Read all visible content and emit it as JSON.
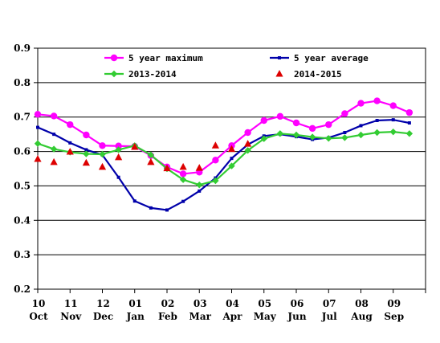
{
  "chart_data": {
    "type": "line",
    "title": "",
    "xlabel": "",
    "ylabel": "",
    "ylim": [
      0.2,
      0.9
    ],
    "y_ticks": [
      "0.9",
      "0.8",
      "0.7",
      "0.6",
      "0.5",
      "0.4",
      "0.3",
      "0.2"
    ],
    "month_numbers": [
      "10",
      "11",
      "12",
      "01",
      "02",
      "03",
      "04",
      "05",
      "06",
      "07",
      "08",
      "09"
    ],
    "month_names": [
      "Oct",
      "Nov",
      "Dec",
      "Jan",
      "Feb",
      "Mar",
      "Apr",
      "May",
      "Jun",
      "Jul",
      "Aug",
      "Sep"
    ],
    "legend_placement": "top",
    "grid": "horizontal",
    "x_points": [
      0,
      0.5,
      1,
      1.5,
      2,
      2.5,
      3,
      3.5,
      4,
      4.5,
      5,
      5.5,
      6,
      6.5,
      7,
      7.5,
      8,
      8.5,
      9,
      9.5,
      10,
      10.5,
      11,
      11.5
    ],
    "series": [
      {
        "name": "5 year maximum",
        "color": "#ff00ff",
        "marker": "circle",
        "values": [
          0.708,
          0.703,
          0.678,
          0.648,
          0.617,
          0.616,
          0.615,
          0.588,
          0.555,
          0.535,
          0.54,
          0.575,
          0.617,
          0.655,
          0.69,
          0.702,
          0.683,
          0.667,
          0.678,
          0.71,
          0.74,
          0.747,
          0.733,
          0.713
        ]
      },
      {
        "name": "5 year average",
        "color": "#0000aa",
        "marker": "dot",
        "values": [
          0.67,
          0.65,
          0.625,
          0.605,
          0.59,
          0.525,
          0.456,
          0.436,
          0.43,
          0.455,
          0.485,
          0.523,
          0.58,
          0.62,
          0.645,
          0.65,
          0.643,
          0.635,
          0.64,
          0.655,
          0.675,
          0.69,
          0.692,
          0.683
        ]
      },
      {
        "name": "2013-2014",
        "color": "#33cc33",
        "marker": "diamond",
        "values": [
          0.623,
          0.607,
          0.598,
          0.593,
          0.592,
          0.605,
          0.617,
          0.59,
          0.55,
          0.518,
          0.503,
          0.515,
          0.558,
          0.603,
          0.637,
          0.652,
          0.648,
          0.642,
          0.638,
          0.64,
          0.648,
          0.655,
          0.657,
          0.652
        ]
      },
      {
        "name": "2014-2015",
        "color": "#dd0000",
        "marker": "triangle",
        "line": false,
        "values": [
          0.578,
          0.569,
          0.599,
          0.567,
          0.555,
          0.583,
          0.613,
          0.569,
          0.551,
          0.555,
          0.552,
          0.617,
          0.607,
          0.622
        ]
      }
    ]
  }
}
